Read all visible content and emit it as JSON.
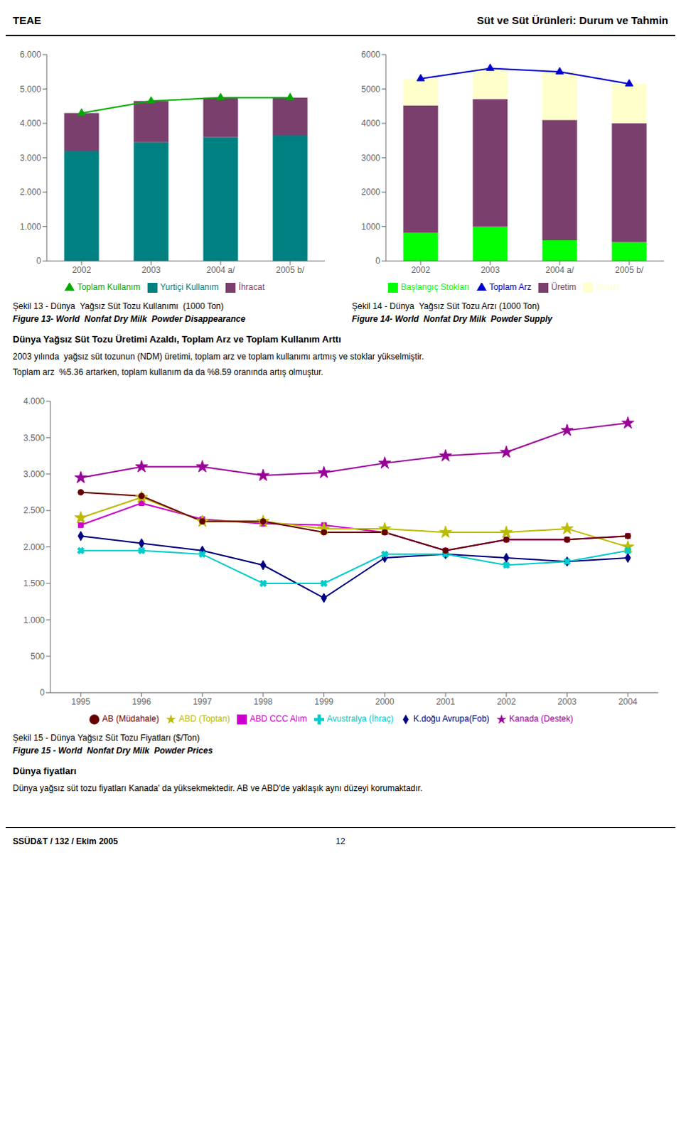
{
  "header": [
    "TEAE",
    "Süt ve Süt Ürünleri: Durum ve Tahmin"
  ],
  "footer": [
    "SSÜD&T / 132 / Ekim 2005",
    "12"
  ],
  "text_blocks": [
    {
      "heading": "Dünya Yağsız Süt Tozu Üretimi Azaldı, Toplam Arz ve Toplam Kullanım Arttı",
      "paragraphs": [
        "2003 yılında  yağsız süt tozunun (NDM) üretimi, toplam arz ve toplam kullanımı artmış ve stoklar yükselmiştir.",
        "Toplam arz  %5.36 artarken, toplam kullanım da da %8.59 oranında artış olmuştur."
      ]
    },
    {
      "heading": "Dünya fiyatları",
      "paragraphs": [
        "Dünya yağsız süt tozu fiyatları Kanada' da yüksekmektedir. AB ve ABD'de yaklaşık aynı düzeyi korumaktadır."
      ]
    }
  ],
  "chart_data": [
    {
      "type": "bar",
      "stacked": true,
      "grid": false,
      "legend": "bottom",
      "categories": [
        "2002",
        "2003",
        "2004 a/",
        "2005 b/"
      ],
      "series": [
        {
          "name": "Yurtiçi Kullanım",
          "type": "bar",
          "color": "#008080",
          "values": [
            3200,
            3450,
            3600,
            3650
          ]
        },
        {
          "name": "İhracat",
          "type": "bar",
          "color": "#7B3F6E",
          "values": [
            1100,
            1200,
            1150,
            1100
          ]
        },
        {
          "name": "Toplam Kullanım",
          "type": "line",
          "color": "#00AA00",
          "marker": "triangle",
          "values": [
            4300,
            4650,
            4750,
            4750
          ]
        }
      ],
      "ylim": [
        0,
        6000
      ],
      "yticks": [
        0,
        {
          "value": 1000,
          "label": "1.000"
        },
        {
          "value": 2000,
          "label": "2.000"
        },
        {
          "value": 3000,
          "label": "3.000"
        },
        {
          "value": 4000,
          "label": "4.000"
        },
        {
          "value": 5000,
          "label": "5.000"
        },
        {
          "value": 6000,
          "label": "6.000"
        }
      ],
      "annotations": [
        "Şekil 13 - Dünya  Yağsız Süt Tozu Kullanımı  (1000 Ton)",
        "Figure 13- World  Nonfat Dry Milk  Powder Disappearance"
      ]
    },
    {
      "type": "bar",
      "stacked": true,
      "grid": false,
      "legend": "bottom",
      "categories": [
        "2002",
        "2003",
        "2004 a/",
        "2005 b/"
      ],
      "series": [
        {
          "name": "Başlangıç Stokları",
          "type": "bar",
          "color": "#00FF00",
          "values": [
            820,
            1000,
            600,
            550
          ]
        },
        {
          "name": "Üretim",
          "type": "bar",
          "color": "#7B3F6E",
          "values": [
            3700,
            3700,
            3500,
            3450
          ]
        },
        {
          "name": "İthalat",
          "type": "bar",
          "color": "#FFFFCC",
          "values": [
            780,
            900,
            1400,
            1150
          ]
        },
        {
          "name": "Toplam Arz",
          "type": "line",
          "color": "#0000CC",
          "marker": "triangle",
          "values": [
            5300,
            5600,
            5500,
            5150
          ]
        }
      ],
      "ylim": [
        0,
        6000
      ],
      "yticks": [
        0,
        1000,
        2000,
        3000,
        4000,
        5000,
        6000
      ],
      "annotations": [
        "Şekil 14 - Dünya  Yağsız Süt Tozu Arzı (1000 Ton)",
        "Figure 14- World  Nonfat Dry Milk  Powder Supply"
      ]
    },
    {
      "type": "line",
      "grid": false,
      "legend": "bottom",
      "x": [
        1995,
        1996,
        1997,
        1998,
        1999,
        2000,
        2001,
        2002,
        2003,
        2004
      ],
      "series": [
        {
          "name": "K.doğu Avrupa(Fob)",
          "color": "#000080",
          "marker": "diamond",
          "values": [
            2150,
            2050,
            1950,
            1750,
            1300,
            1850,
            1900,
            1850,
            1800,
            1850
          ]
        },
        {
          "name": "ABD CCC Alım",
          "color": "#CC00CC",
          "marker": "square",
          "values": [
            2300,
            2600,
            2380,
            2320,
            2300,
            2200,
            1950,
            2100,
            2100,
            2150
          ]
        },
        {
          "name": "ABD (Toptan)",
          "color": "#BBBB00",
          "marker": "star",
          "values": [
            2400,
            2680,
            2350,
            2350,
            2250,
            2250,
            2200,
            2200,
            2250,
            2000
          ]
        },
        {
          "name": "Avustralya (İhraç)",
          "color": "#00CCCC",
          "marker": "x",
          "values": [
            1950,
            1950,
            1900,
            1500,
            1500,
            1900,
            1900,
            1750,
            1800,
            1950
          ]
        },
        {
          "name": "Kanada (Destek)",
          "color": "#990099",
          "marker": "star",
          "values": [
            2950,
            3100,
            3100,
            2980,
            3020,
            3150,
            3250,
            3300,
            3600,
            3700
          ]
        },
        {
          "name": "AB (Müdahale)",
          "color": "#660000",
          "marker": "circle",
          "values": [
            2750,
            2700,
            2350,
            2350,
            2200,
            2200,
            1950,
            2100,
            2100,
            2150
          ]
        }
      ],
      "xlim": [
        1994.5,
        2004.5
      ],
      "xticks": [
        1995,
        1996,
        1997,
        1998,
        1999,
        2000,
        2001,
        2002,
        2003,
        2004
      ],
      "ylim": [
        0,
        4000
      ],
      "yticks": [
        0,
        500,
        {
          "value": 1000,
          "label": "1.000"
        },
        {
          "value": 1500,
          "label": "1.500"
        },
        {
          "value": 2000,
          "label": "2.000"
        },
        {
          "value": 2500,
          "label": "2.500"
        },
        {
          "value": 3000,
          "label": "3.000"
        },
        {
          "value": 3500,
          "label": "3.500"
        },
        {
          "value": 4000,
          "label": "4.000"
        }
      ],
      "annotations": [
        "Şekil 15 - Dünya Yağsız Süt Tozu Fiyatları ($/Ton)",
        "Figure 15 - World  Nonfat Dry Milk  Powder Prices"
      ]
    }
  ]
}
